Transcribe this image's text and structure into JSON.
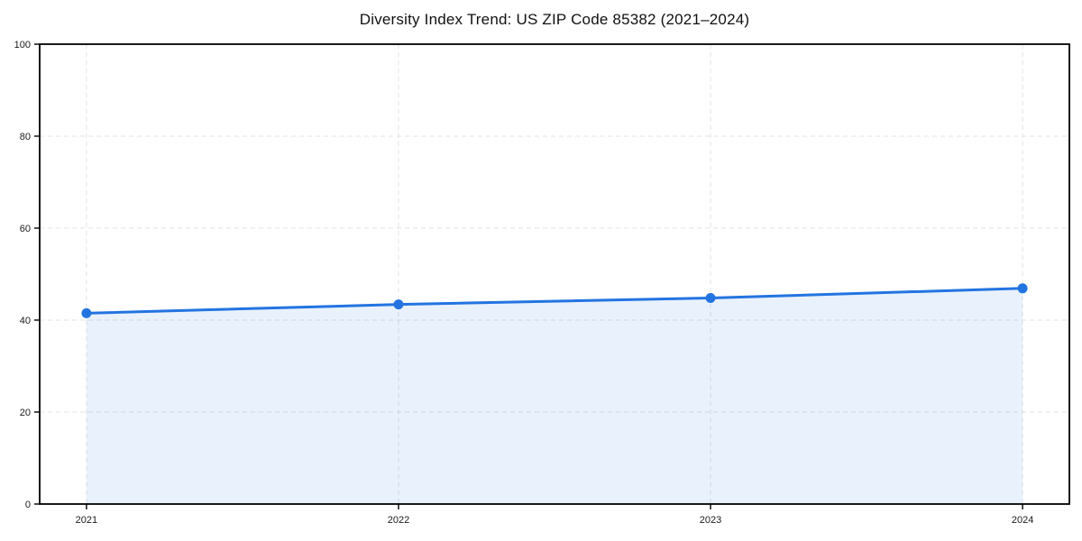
{
  "chart_data": {
    "type": "area",
    "title": "Diversity Index Trend: US ZIP Code 85382 (2021–2024)",
    "categories": [
      "2021",
      "2022",
      "2023",
      "2024"
    ],
    "values": [
      41.5,
      43.4,
      44.8,
      46.9
    ],
    "series_name": "Diversity Index",
    "xlabel": "",
    "ylabel": "",
    "ylim": [
      0,
      100
    ],
    "yticks": [
      0,
      20,
      40,
      60,
      80,
      100
    ],
    "grid": "dashed-both-axes",
    "legend": "none",
    "marker": "circle",
    "colors": {
      "line": "#2374e1",
      "marker": "#2374e1",
      "fill": "rgba(35,116,225,0.10)",
      "grid": "#e3e3e3",
      "spine": "#000000",
      "tick": "#000000",
      "text": "#1a1a1a",
      "background": "#ffffff"
    }
  }
}
